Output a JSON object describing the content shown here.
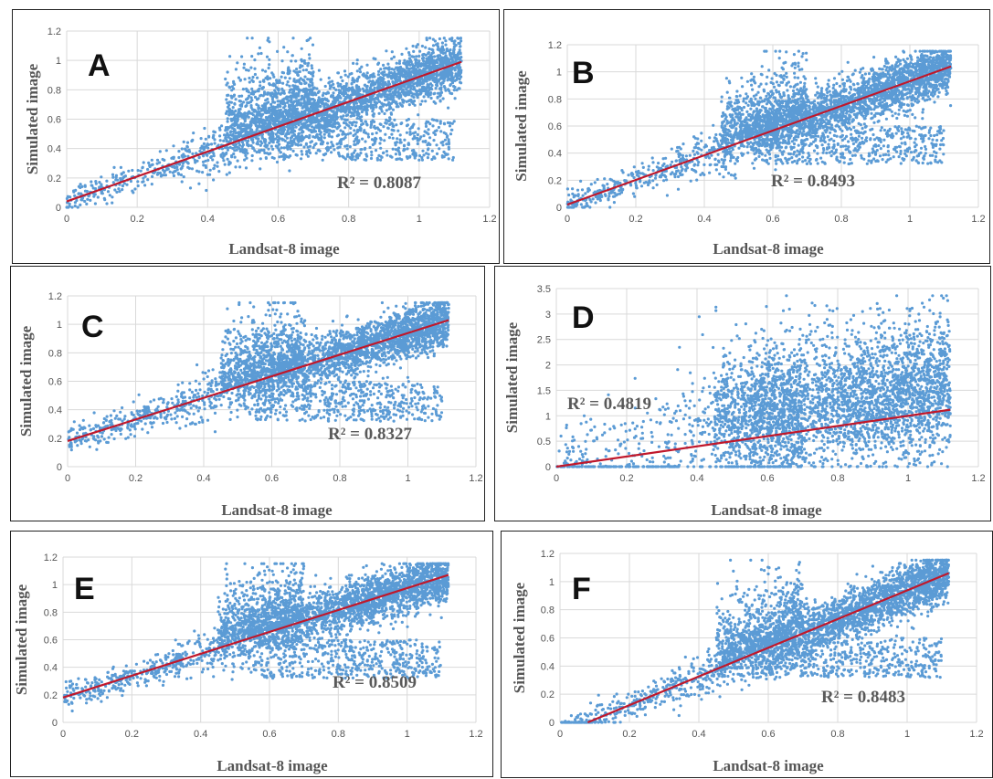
{
  "colors": {
    "points": "#5b9bd5",
    "trendline": "#c0182b",
    "grid": "#d9d9d9",
    "text": "#595959"
  },
  "chart_data": [
    {
      "type": "scatter",
      "panel_label": "A",
      "xlabel": "Landsat-8 image",
      "ylabel": "Simulated image",
      "xlim": [
        0,
        1.2
      ],
      "ylim": [
        0,
        1.2
      ],
      "xticks": [
        "0",
        "0.2",
        "0.4",
        "0.6",
        "0.8",
        "1",
        "1.2"
      ],
      "yticks": [
        "0",
        "0.2",
        "0.4",
        "0.6",
        "0.8",
        "1",
        "1.2"
      ],
      "grid": true,
      "trendline": {
        "x": [
          0,
          1.12
        ],
        "y": [
          0.04,
          0.99
        ]
      },
      "r2_label": "R² = 0.8087"
    },
    {
      "type": "scatter",
      "panel_label": "B",
      "xlabel": "Landsat-8 image",
      "ylabel": "Simulated image",
      "xlim": [
        0,
        1.2
      ],
      "ylim": [
        0,
        1.2
      ],
      "xticks": [
        "0",
        "0.2",
        "0.4",
        "0.6",
        "0.8",
        "1",
        "1.2"
      ],
      "yticks": [
        "0",
        "0.2",
        "0.4",
        "0.6",
        "0.8",
        "1",
        "1.2"
      ],
      "grid": true,
      "trendline": {
        "x": [
          0,
          1.12
        ],
        "y": [
          0.02,
          1.04
        ]
      },
      "r2_label": "R² = 0.8493"
    },
    {
      "type": "scatter",
      "panel_label": "C",
      "xlabel": "Landsat-8 image",
      "ylabel": "Simulated image",
      "xlim": [
        0,
        1.2
      ],
      "ylim": [
        0,
        1.2
      ],
      "xticks": [
        "0",
        "0.2",
        "0.4",
        "0.6",
        "0.8",
        "1",
        "1.2"
      ],
      "yticks": [
        "0",
        "0.2",
        "0.4",
        "0.6",
        "0.8",
        "1",
        "1.2"
      ],
      "grid": true,
      "trendline": {
        "x": [
          0,
          1.12
        ],
        "y": [
          0.18,
          1.03
        ]
      },
      "r2_label": "R² = 0.8327"
    },
    {
      "type": "scatter",
      "panel_label": "D",
      "xlabel": "Landsat-8 image",
      "ylabel": "Simulated image",
      "xlim": [
        0,
        1.2
      ],
      "ylim": [
        0,
        3.5
      ],
      "xticks": [
        "0",
        "0.2",
        "0.4",
        "0.6",
        "0.8",
        "1",
        "1.2"
      ],
      "yticks": [
        "0",
        "0.5",
        "1",
        "1.5",
        "2",
        "2.5",
        "3",
        "3.5"
      ],
      "grid": true,
      "trendline": {
        "x": [
          0,
          1.12
        ],
        "y": [
          0.0,
          1.12
        ]
      },
      "r2_label": "R² = 0.4819"
    },
    {
      "type": "scatter",
      "panel_label": "E",
      "xlabel": "Landsat-8 image",
      "ylabel": "Simulated image",
      "xlim": [
        0,
        1.2
      ],
      "ylim": [
        0,
        1.2
      ],
      "xticks": [
        "0",
        "0.2",
        "0.4",
        "0.6",
        "0.8",
        "1",
        "1.2"
      ],
      "yticks": [
        "0",
        "0.2",
        "0.4",
        "0.6",
        "0.8",
        "1",
        "1.2"
      ],
      "grid": true,
      "trendline": {
        "x": [
          0,
          1.12
        ],
        "y": [
          0.18,
          1.07
        ]
      },
      "r2_label": "R² = 0.8509"
    },
    {
      "type": "scatter",
      "panel_label": "F",
      "xlabel": "Landsat-8 image",
      "ylabel": "Simulated image",
      "xlim": [
        0,
        1.2
      ],
      "ylim": [
        0,
        1.2
      ],
      "xticks": [
        "0",
        "0.2",
        "0.4",
        "0.6",
        "0.8",
        "1",
        "1.2"
      ],
      "yticks": [
        "0",
        "0.2",
        "0.4",
        "0.6",
        "0.8",
        "1",
        "1.2"
      ],
      "grid": true,
      "trendline": {
        "x": [
          0.08,
          1.12
        ],
        "y": [
          0.0,
          1.06
        ]
      },
      "r2_label": "R² = 0.8483"
    }
  ]
}
